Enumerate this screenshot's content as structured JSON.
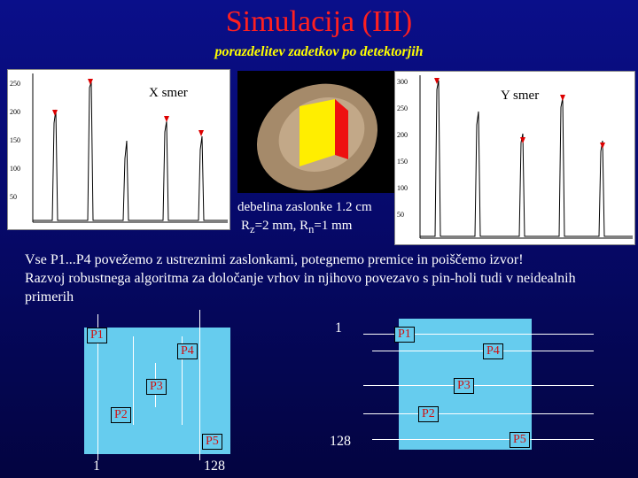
{
  "slide": {
    "title": "Simulacija (III)",
    "subtitle": "porazdelitev zadetkov po detektorjih"
  },
  "plot_x": {
    "label": "X smer",
    "yticks": [
      "250",
      "200",
      "150",
      "100",
      "50"
    ]
  },
  "plot_y": {
    "label": "Y smer",
    "yticks": [
      "300",
      "250",
      "200",
      "150",
      "100",
      "50"
    ]
  },
  "render": {
    "note_line1": "debelina zaslonke 1.2 cm",
    "note_line2_a": "R",
    "note_line2_a_sub": "z",
    "note_line2_b": "=2 mm, R",
    "note_line2_b_sub": "n",
    "note_line2_c": "=1 mm"
  },
  "body_text": {
    "line1": "Vse P1...P4 povežemo z ustreznimi zaslonkami, potegnemo premice in poiščemo izvor!",
    "line2": "Razvoj robustnega algoritma za določanje vrhov in njihovo povezavo s pin-holi tudi v neidealnih primerih"
  },
  "diagram_left": {
    "pads": [
      "P1",
      "P4",
      "P3",
      "P2",
      "P5"
    ],
    "axis_min": "1",
    "axis_max": "128"
  },
  "diagram_right": {
    "pads": [
      "P1",
      "P4",
      "P3",
      "P2",
      "P5"
    ],
    "axis_min": "1",
    "axis_max": "128"
  },
  "colors": {
    "title": "#ff2020",
    "subtitle": "#ffff00",
    "pad_text": "#d01010",
    "diagram_fill": "#66ccee"
  }
}
